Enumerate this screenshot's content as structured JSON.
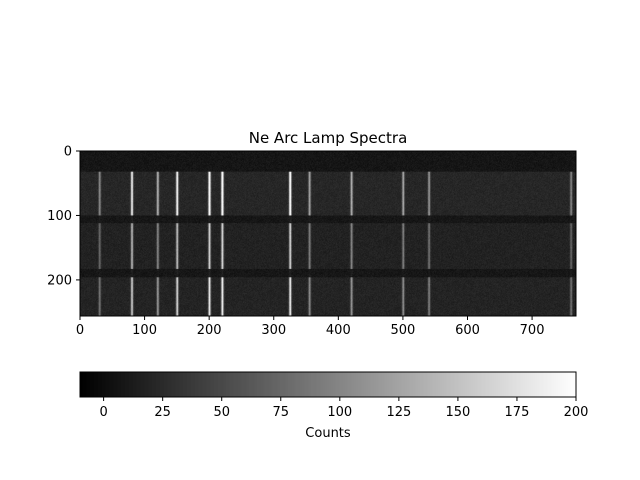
{
  "chart_data": {
    "type": "heatmap",
    "title": "Ne Arc Lamp Spectra",
    "xlabel": "",
    "ylabel": "",
    "colormap": "gray",
    "image_size": [
      768,
      256
    ],
    "xlim": [
      0,
      768
    ],
    "ylim": [
      256,
      0
    ],
    "x_ticks": [
      0,
      100,
      200,
      300,
      400,
      500,
      600,
      700
    ],
    "y_ticks": [
      0,
      100,
      200
    ],
    "grid": false,
    "background_counts": 8,
    "spectra": [
      {
        "row_start": 0,
        "row_end": 32,
        "strength": 0.0
      },
      {
        "row_start": 32,
        "row_end": 100,
        "strength": 1.0
      },
      {
        "row_start": 100,
        "row_end": 112,
        "strength": 0.05
      },
      {
        "row_start": 112,
        "row_end": 183,
        "strength": 0.72
      },
      {
        "row_start": 183,
        "row_end": 196,
        "strength": 0.05
      },
      {
        "row_start": 196,
        "row_end": 256,
        "strength": 0.82
      }
    ],
    "lines": [
      {
        "x": 30,
        "peak": 85
      },
      {
        "x": 80,
        "peak": 175
      },
      {
        "x": 120,
        "peak": 120
      },
      {
        "x": 150,
        "peak": 185
      },
      {
        "x": 200,
        "peak": 215
      },
      {
        "x": 220,
        "peak": 220
      },
      {
        "x": 325,
        "peak": 210
      },
      {
        "x": 355,
        "peak": 110
      },
      {
        "x": 420,
        "peak": 120
      },
      {
        "x": 500,
        "peak": 110
      },
      {
        "x": 540,
        "peak": 95
      },
      {
        "x": 760,
        "peak": 80
      }
    ],
    "colorbar": {
      "label": "Counts",
      "range": [
        -10,
        200
      ],
      "ticks": [
        0,
        25,
        50,
        75,
        100,
        125,
        150,
        175,
        200
      ],
      "orientation": "horizontal",
      "placement": "bottom"
    }
  }
}
